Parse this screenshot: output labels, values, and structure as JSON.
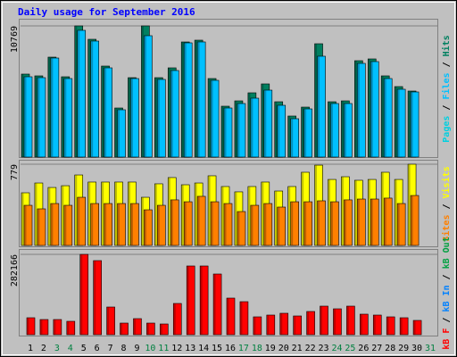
{
  "title": "Daily usage for September 2016",
  "legend_separator": " / ",
  "chart_data": [
    {
      "type": "bar",
      "ylim": [
        0,
        10769
      ],
      "yticks": [
        10769
      ],
      "legend_extra_first": true,
      "legend_extra": [
        {
          "name": "Pages",
          "color": "#00d0e0"
        }
      ],
      "series": [
        {
          "name": "Hits",
          "color": "#008060",
          "values": [
            6813,
            6667,
            8205,
            6593,
            10769,
            9670,
            7472,
            4029,
            6520,
            10769,
            6520,
            7326,
            9450,
            9597,
            6447,
            4176,
            4615,
            5275,
            6007,
            4542,
            3370,
            4102,
            9304,
            4542,
            4615,
            7912,
            8058,
            6667,
            5787,
            5421,
            null
          ]
        },
        {
          "name": "Files",
          "color": "#00c0ff",
          "values": [
            6593,
            6520,
            8132,
            6447,
            10403,
            9524,
            7326,
            3883,
            6447,
            9963,
            6374,
            7106,
            9377,
            9451,
            6300,
            4029,
            4396,
            4835,
            5494,
            4249,
            3150,
            3956,
            8278,
            4396,
            4396,
            7692,
            7839,
            6447,
            5568,
            5348,
            null
          ]
        }
      ]
    },
    {
      "type": "bar",
      "ylim": [
        0,
        779
      ],
      "yticks": [
        779
      ],
      "legend_extra_first": false,
      "legend_extra": [],
      "series": [
        {
          "name": "Visits",
          "color": "#ffff00",
          "values": [
            505,
            599,
            556,
            573,
            676,
            608,
            608,
            608,
            608,
            462,
            591,
            651,
            582,
            599,
            668,
            565,
            514,
            565,
            608,
            522,
            565,
            702,
            770,
            633,
            659,
            625,
            633,
            702,
            633,
            779,
            null
          ]
        },
        {
          "name": "Sites",
          "color": "#ff8000",
          "values": [
            385,
            351,
            402,
            385,
            462,
            402,
            402,
            402,
            402,
            342,
            385,
            437,
            419,
            471,
            419,
            402,
            325,
            385,
            402,
            368,
            419,
            419,
            428,
            419,
            437,
            445,
            445,
            454,
            402,
            479,
            null
          ]
        }
      ]
    },
    {
      "type": "bar",
      "ylim": [
        0,
        282166
      ],
      "yticks": [
        282166
      ],
      "legend_extra_first": false,
      "legend_extra": [
        {
          "name": "kB In",
          "color": "#0080ff"
        },
        {
          "name": "kB Out",
          "color": "#00a040"
        }
      ],
      "categories": [
        "1",
        "2",
        "3",
        "4",
        "5",
        "6",
        "7",
        "8",
        "9",
        "10",
        "11",
        "12",
        "13",
        "14",
        "15",
        "16",
        "17",
        "18",
        "19",
        "20",
        "21",
        "22",
        "23",
        "24",
        "25",
        "26",
        "27",
        "28",
        "29",
        "30",
        "31"
      ],
      "category_colors": [
        "#000000",
        "#000000",
        "#008040",
        "#008040",
        "#000000",
        "#000000",
        "#000000",
        "#000000",
        "#000000",
        "#008040",
        "#008040",
        "#000000",
        "#000000",
        "#000000",
        "#000000",
        "#000000",
        "#008040",
        "#008040",
        "#000000",
        "#000000",
        "#000000",
        "#000000",
        "#000000",
        "#008040",
        "#008040",
        "#000000",
        "#000000",
        "#000000",
        "#000000",
        "#000000",
        "#008040"
      ],
      "series": [
        {
          "name": "kB F",
          "color": "#ff0000",
          "values": [
            59569,
            53298,
            53298,
            47028,
            282166,
            260222,
            97191,
            40758,
            56434,
            40758,
            37622,
            109732,
            241410,
            241410,
            213194,
            128543,
            116002,
            62704,
            68974,
            75245,
            65839,
            81515,
            100326,
            90921,
            100326,
            72110,
            68974,
            62704,
            59569,
            50163,
            null
          ]
        }
      ]
    }
  ]
}
